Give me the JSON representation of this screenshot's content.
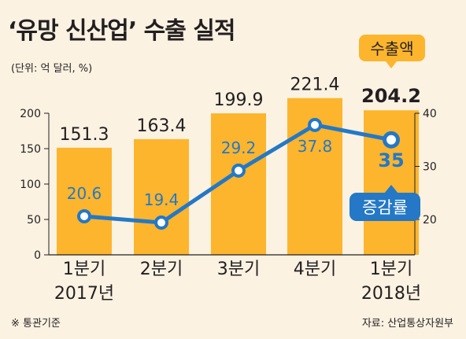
{
  "title": "‘유망 신산업’ 수출 실적",
  "unit_note": "(단위: 억 달러, %)",
  "footnote": "※ 통관기준",
  "source": "자료: 산업통상자원부",
  "colors": {
    "background": "#fbf2e2",
    "bar": "#fdb52e",
    "line": "#2478c6",
    "label_blue": "#2478c6",
    "text": "#231f20"
  },
  "chart_data": {
    "type": "bar+line",
    "categories": [
      "1분기\n2017년",
      "2분기",
      "3분기",
      "4분기",
      "1분기\n2018년"
    ],
    "left_axis": {
      "ylim": [
        0,
        200
      ],
      "ticks": [
        "0",
        "50",
        "100",
        "150",
        "200"
      ]
    },
    "right_axis": {
      "ylim": [
        20,
        45
      ],
      "ticks": [
        "20",
        "30",
        "40"
      ]
    },
    "series": [
      {
        "name": "수출액",
        "type": "bar",
        "axis": "left",
        "values": [
          151.3,
          163.4,
          199.9,
          221.4,
          204.2
        ],
        "labels": [
          "151.3",
          "163.4",
          "199.9",
          "221.4",
          "204.2"
        ]
      },
      {
        "name": "증감률",
        "type": "line",
        "axis": "right",
        "values": [
          20.6,
          19.4,
          29.2,
          37.8,
          35
        ],
        "labels": [
          "20.6",
          "19.4",
          "29.2",
          "37.8",
          "35"
        ]
      }
    ],
    "grid": false
  }
}
